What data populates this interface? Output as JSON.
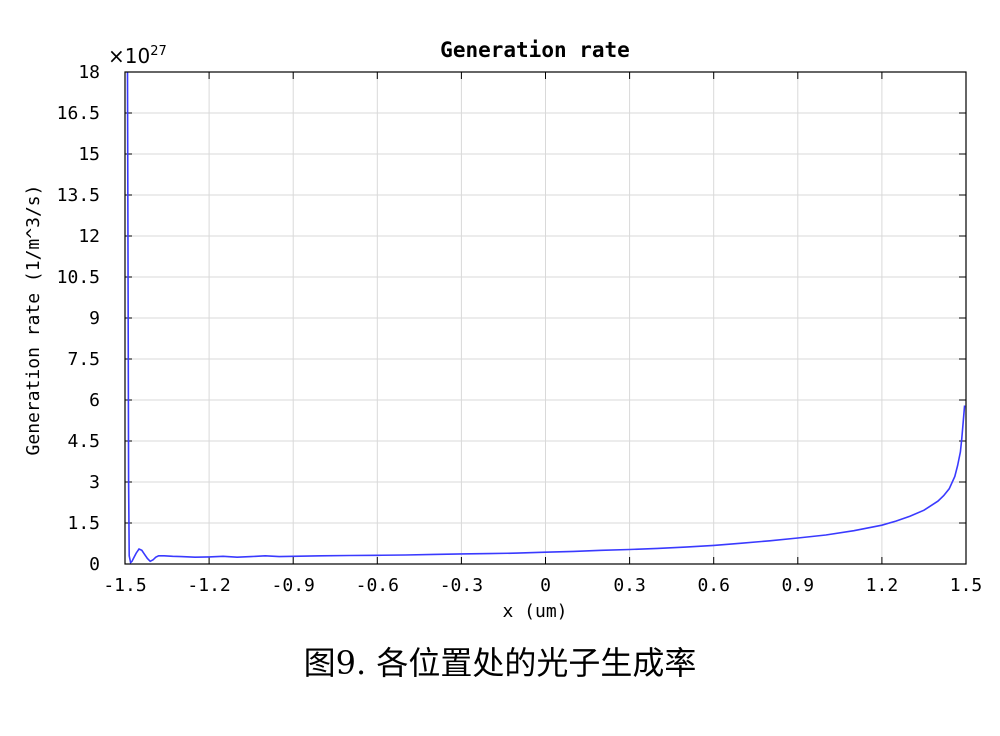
{
  "chart_data": {
    "type": "line",
    "title": "Generation rate",
    "xlabel": "x (um)",
    "ylabel": "Generation rate (1/m^3/s)",
    "y_multiplier": "×10",
    "y_multiplier_exp": "27",
    "xlim": [
      -1.5,
      1.5
    ],
    "ylim": [
      0,
      18
    ],
    "x_ticks": [
      -1.5,
      -1.2,
      -0.9,
      -0.6,
      -0.3,
      0,
      0.3,
      0.6,
      0.9,
      1.2,
      1.5
    ],
    "x_tick_labels": [
      "-1.5",
      "-1.2",
      "-0.9",
      "-0.6",
      "-0.3",
      "0",
      "0.3",
      "0.6",
      "0.9",
      "1.2",
      "1.5"
    ],
    "y_ticks": [
      0,
      1.5,
      3,
      4.5,
      6,
      7.5,
      9,
      10.5,
      12,
      13.5,
      15,
      16.5,
      18
    ],
    "y_tick_labels": [
      "0",
      "1.5",
      "3",
      "4.5",
      "6",
      "7.5",
      "9",
      "10.5",
      "12",
      "13.5",
      "15",
      "16.5",
      "18"
    ],
    "grid": true,
    "line_color": "#3a3aff",
    "series": [
      {
        "x": [
          -1.491,
          -1.489,
          -1.487,
          -1.485,
          -1.48,
          -1.475,
          -1.47,
          -1.46,
          -1.45,
          -1.44,
          -1.43,
          -1.42,
          -1.41,
          -1.4,
          -1.39,
          -1.38,
          -1.36,
          -1.33,
          -1.3,
          -1.25,
          -1.2,
          -1.15,
          -1.1,
          -1.05,
          -1.0,
          -0.95,
          -0.9,
          -0.8,
          -0.7,
          -0.6,
          -0.5,
          -0.4,
          -0.3,
          -0.2,
          -0.1,
          0.0,
          0.1,
          0.2,
          0.3,
          0.4,
          0.5,
          0.6,
          0.7,
          0.8,
          0.9,
          1.0,
          1.1,
          1.2,
          1.25,
          1.3,
          1.35,
          1.4,
          1.42,
          1.44,
          1.46,
          1.47,
          1.48,
          1.485,
          1.49,
          1.495
        ],
        "y": [
          18,
          10,
          3,
          0.3,
          0.05,
          0.1,
          0.2,
          0.4,
          0.55,
          0.5,
          0.35,
          0.2,
          0.1,
          0.15,
          0.25,
          0.3,
          0.3,
          0.28,
          0.27,
          0.25,
          0.26,
          0.28,
          0.25,
          0.27,
          0.3,
          0.27,
          0.28,
          0.3,
          0.31,
          0.32,
          0.33,
          0.35,
          0.37,
          0.38,
          0.4,
          0.43,
          0.46,
          0.5,
          0.53,
          0.57,
          0.62,
          0.68,
          0.76,
          0.85,
          0.95,
          1.06,
          1.22,
          1.42,
          1.57,
          1.75,
          1.97,
          2.3,
          2.5,
          2.75,
          3.2,
          3.6,
          4.1,
          4.6,
          5.2,
          5.8
        ]
      }
    ]
  },
  "caption": "图9. 各位置处的光子生成率"
}
